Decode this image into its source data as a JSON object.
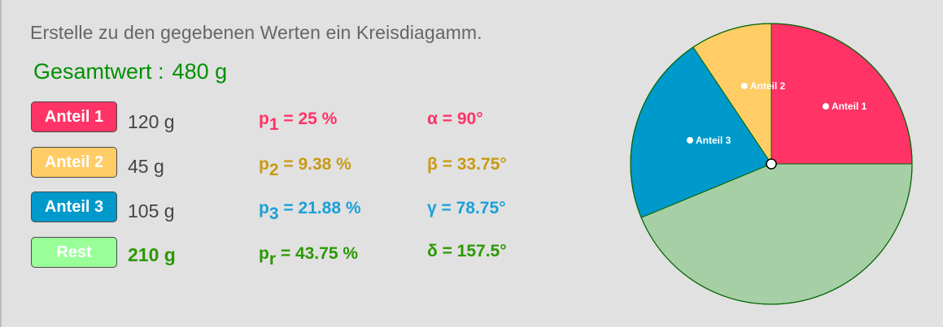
{
  "instruction": "Erstelle zu den gegebenen Werten ein Kreisdiagamm.",
  "total": {
    "label": "Gesamtwert :",
    "value": "480 g"
  },
  "rows": [
    {
      "button": "Anteil 1",
      "value": "120 g",
      "p_base": "p",
      "p_sub": "1",
      "p_text": " = 25 %",
      "angle": "α = 90°",
      "color": "#ff3366",
      "button_color": "#ff3366"
    },
    {
      "button": "Anteil 2",
      "value": "45 g",
      "p_base": "p",
      "p_sub": "2",
      "p_text": " = 9.38 %",
      "angle": "β = 33.75°",
      "color": "#c99a15",
      "button_color": "#ffcc66"
    },
    {
      "button": "Anteil 3",
      "value": "105 g",
      "p_base": "p",
      "p_sub": "3",
      "p_text": " = 21.88 %",
      "angle": "γ = 78.75°",
      "color": "#1aa0d8",
      "button_color": "#0099cc"
    },
    {
      "button": "Rest",
      "value": "210 g",
      "p_base": "p",
      "p_sub": "r",
      "p_text": " = 43.75 %",
      "angle": "δ = 157.5°",
      "color": "#2a9900",
      "button_color": "#99ff99"
    }
  ],
  "pie": {
    "slices": [
      {
        "label": "Anteil 1",
        "degrees": 90,
        "color": "#ff3366"
      },
      {
        "label": "Anteil 2",
        "degrees": 33.75,
        "color": "#ffcc66"
      },
      {
        "label": "Anteil 3",
        "degrees": 78.75,
        "color": "#0099cc"
      },
      {
        "label": "",
        "degrees": 157.5,
        "color": "#a6cfa6"
      }
    ],
    "border_color": "#006600"
  }
}
